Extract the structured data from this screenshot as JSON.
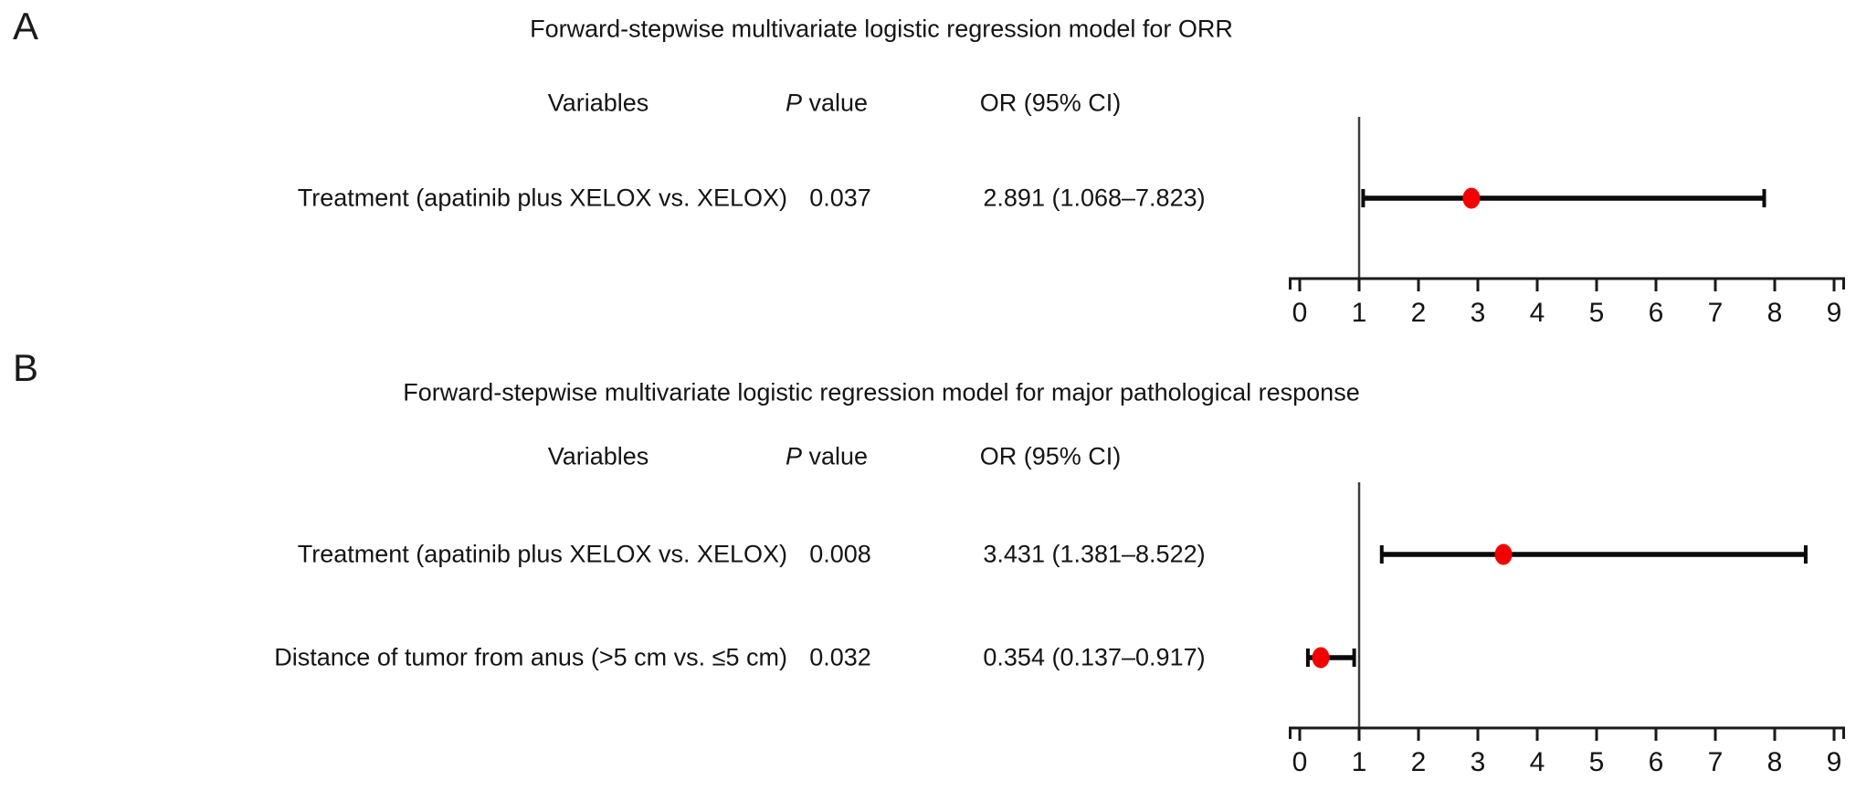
{
  "figure": {
    "background": "#ffffff"
  },
  "panels": [
    {
      "label": "A",
      "title": "Forward-stepwise multivariate logistic regression model for ORR",
      "columns": {
        "variables": "Variables",
        "p_italic": "P",
        "p_rest": " value",
        "or_ci": "OR (95% CI)"
      },
      "rows": [
        {
          "variable": "Treatment (apatinib plus XELOX vs. XELOX)",
          "p_value": "0.037",
          "or_ci": "2.891 (1.068–7.823)"
        }
      ]
    },
    {
      "label": "B",
      "title": "Forward-stepwise multivariate logistic regression model for major pathological response",
      "columns": {
        "variables": "Variables",
        "p_italic": "P",
        "p_rest": " value",
        "or_ci": "OR (95% CI)"
      },
      "rows": [
        {
          "variable": "Treatment (apatinib plus XELOX vs. XELOX)",
          "p_value": "0.008",
          "or_ci": "3.431 (1.381–8.522)"
        },
        {
          "variable": "Distance of tumor from anus (>5 cm vs. ≤5 cm)",
          "p_value": "0.032",
          "or_ci": "0.354 (0.137–0.917)"
        }
      ]
    }
  ],
  "chart_data": [
    {
      "type": "forest",
      "title": "Forward-stepwise multivariate logistic regression model for ORR",
      "xlabel": "",
      "ylabel": "",
      "xlim": [
        0,
        9
      ],
      "ticks": [
        0,
        1,
        2,
        3,
        4,
        5,
        6,
        7,
        8,
        9
      ],
      "refline": 1,
      "grid": false,
      "points": [
        {
          "label": "Treatment (apatinib plus XELOX vs. XELOX)",
          "p_value": 0.037,
          "or": 2.891,
          "ci_low": 1.068,
          "ci_high": 7.823
        }
      ],
      "colors": {
        "marker": "#f40000",
        "bar": "#0a0a0a",
        "axis": "#1a1a1a",
        "refline": "#3d3d3d",
        "text": "#141414"
      }
    },
    {
      "type": "forest",
      "title": "Forward-stepwise multivariate logistic regression model for major pathological response",
      "xlabel": "",
      "ylabel": "",
      "xlim": [
        0,
        9
      ],
      "ticks": [
        0,
        1,
        2,
        3,
        4,
        5,
        6,
        7,
        8,
        9
      ],
      "refline": 1,
      "grid": false,
      "points": [
        {
          "label": "Treatment (apatinib plus XELOX vs. XELOX)",
          "p_value": 0.008,
          "or": 3.431,
          "ci_low": 1.381,
          "ci_high": 8.522
        },
        {
          "label": "Distance of tumor from anus (>5 cm vs. ≤5 cm)",
          "p_value": 0.032,
          "or": 0.354,
          "ci_low": 0.137,
          "ci_high": 0.917
        }
      ],
      "colors": {
        "marker": "#f40000",
        "bar": "#0a0a0a",
        "axis": "#1a1a1a",
        "refline": "#3d3d3d",
        "text": "#141414"
      }
    }
  ]
}
